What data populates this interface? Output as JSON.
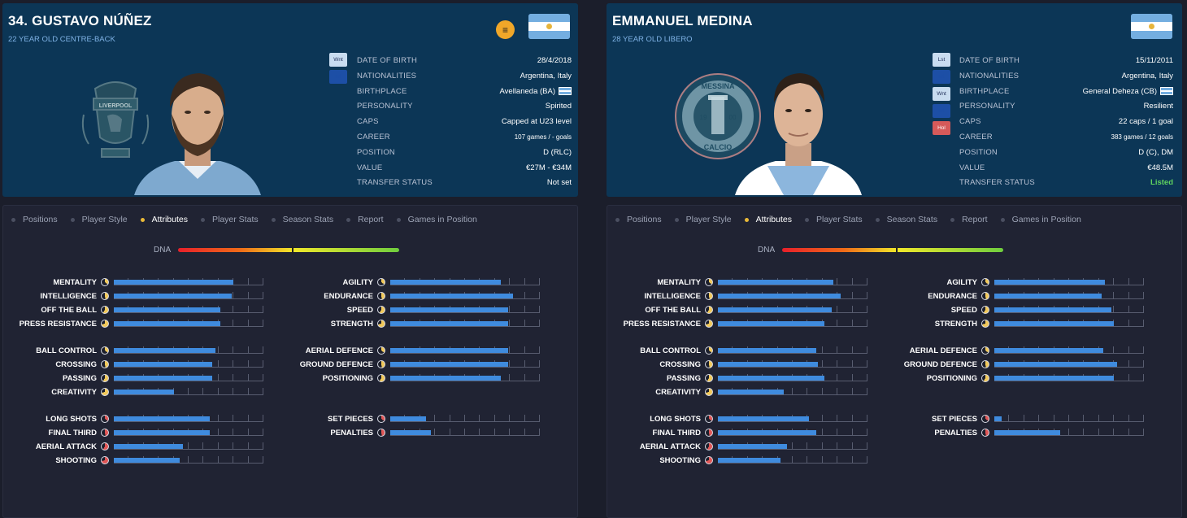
{
  "players": [
    {
      "name": "34. GUSTAVO NÚÑEZ",
      "subtitle": "22 YEAR OLD CENTRE-BACK",
      "badges": [
        "Wnt",
        "Int"
      ],
      "info": [
        {
          "k": "DATE OF BIRTH",
          "v": "28/4/2018"
        },
        {
          "k": "NATIONALITIES",
          "v": "Argentina, Italy"
        },
        {
          "k": "BIRTHPLACE",
          "v": "Avellaneda (BA)"
        },
        {
          "k": "PERSONALITY",
          "v": "Spirited"
        },
        {
          "k": "CAPS",
          "v": "Capped at U23 level"
        },
        {
          "k": "CAREER",
          "v": "107 games /    -  goals"
        },
        {
          "k": "POSITION",
          "v": "D (RLC)"
        },
        {
          "k": "VALUE",
          "v": "€27M - €34M"
        },
        {
          "k": "TRANSFER STATUS",
          "v": "Not set"
        }
      ],
      "crest_text": "LIVERPOOL"
    },
    {
      "name": "EMMANUEL MEDINA",
      "subtitle": "28 YEAR OLD LIBERO",
      "badges": [
        "Lst",
        "Int",
        "Wnt",
        "Int",
        "Hol"
      ],
      "info": [
        {
          "k": "DATE OF BIRTH",
          "v": "15/11/2011"
        },
        {
          "k": "NATIONALITIES",
          "v": "Argentina, Italy"
        },
        {
          "k": "BIRTHPLACE",
          "v": "General Deheza (CB)"
        },
        {
          "k": "PERSONALITY",
          "v": "Resilient"
        },
        {
          "k": "CAPS",
          "v": "22 caps / 1 goal"
        },
        {
          "k": "CAREER",
          "v": "383 games /   12  goals"
        },
        {
          "k": "POSITION",
          "v": "D (C), DM"
        },
        {
          "k": "VALUE",
          "v": "€48.5M"
        },
        {
          "k": "TRANSFER STATUS",
          "v": "Listed"
        }
      ],
      "crest_text": "MESSINA"
    }
  ],
  "tabs": [
    "Positions",
    "Player Style",
    "Attributes",
    "Player Stats",
    "Season Stats",
    "Report",
    "Games in Position"
  ],
  "active_tab": "Attributes",
  "dna_label": "DNA",
  "attr_groups": {
    "left": [
      [
        "MENTALITY",
        "INTELLIGENCE",
        "OFF THE BALL",
        "PRESS RESISTANCE"
      ],
      [
        "BALL CONTROL",
        "CROSSING",
        "PASSING",
        "CREATIVITY"
      ],
      [
        "LONG SHOTS",
        "FINAL THIRD",
        "AERIAL ATTACK",
        "SHOOTING"
      ]
    ],
    "right": [
      [
        "AGILITY",
        "ENDURANCE",
        "SPEED",
        "STRENGTH"
      ],
      [
        "AERIAL DEFENCE",
        "GROUND DEFENCE",
        "POSITIONING"
      ],
      [
        "SET PIECES",
        "PENALTIES"
      ]
    ]
  },
  "attr_values": [
    {
      "left": [
        [
          0.8,
          0.79,
          0.71,
          0.71
        ],
        [
          0.68,
          0.66,
          0.66,
          0.4
        ],
        [
          0.64,
          0.64,
          0.46,
          0.44
        ]
      ],
      "right": [
        [
          0.74,
          0.82,
          0.79,
          0.79
        ],
        [
          0.79,
          0.79,
          0.74
        ],
        [
          0.24,
          0.27
        ]
      ]
    },
    {
      "left": [
        [
          0.77,
          0.82,
          0.76,
          0.71
        ],
        [
          0.66,
          0.67,
          0.71,
          0.44
        ],
        [
          0.61,
          0.66,
          0.46,
          0.42
        ]
      ],
      "right": [
        [
          0.74,
          0.72,
          0.78,
          0.8
        ],
        [
          0.73,
          0.82,
          0.8
        ],
        [
          0.05,
          0.44
        ]
      ]
    }
  ]
}
